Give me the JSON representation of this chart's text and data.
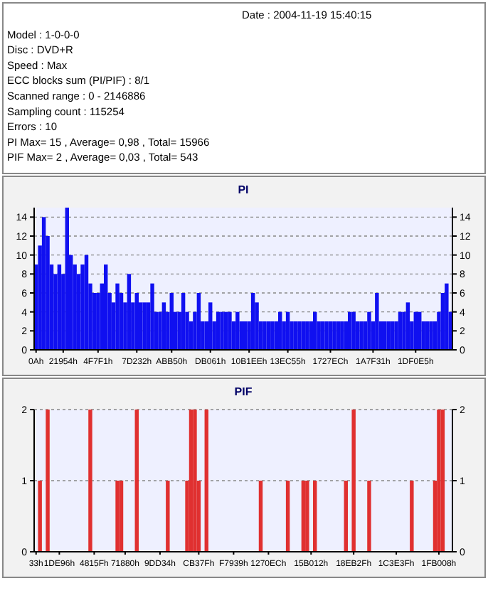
{
  "chart_data": [
    {
      "type": "other",
      "annotations": [
        "Date : 2004-11-19 15:40:15",
        "Model : 1-0-0-0",
        "Disc : DVD+R",
        "Speed : Max",
        "ECC blocks sum (PI/PIF) : 8/1",
        "Scanned range : 0 - 2146886",
        "Sampling count : 115254",
        "Errors : 10",
        "PI Max= 15 , Average= 0,98 , Total= 15966",
        "PIF Max= 2 , Average= 0,03 , Total= 543"
      ]
    },
    {
      "type": "bar",
      "title": "PI",
      "grid": "y",
      "categories": [
        "0Ah",
        null,
        null,
        null,
        null,
        null,
        null,
        "21954h",
        null,
        null,
        null,
        null,
        null,
        null,
        null,
        null,
        "4F7F1h",
        null,
        null,
        null,
        null,
        null,
        null,
        null,
        null,
        null,
        "7D232h",
        null,
        null,
        null,
        null,
        null,
        null,
        null,
        null,
        "ABB50h",
        null,
        null,
        null,
        null,
        null,
        null,
        null,
        null,
        null,
        "DB061h",
        null,
        null,
        null,
        null,
        null,
        null,
        null,
        null,
        null,
        "10B1EEh",
        null,
        null,
        null,
        null,
        null,
        null,
        null,
        null,
        null,
        "13EC55h",
        null,
        null,
        null,
        null,
        null,
        null,
        null,
        null,
        null,
        null,
        "1727ECh",
        null,
        null,
        null,
        null,
        null,
        null,
        null,
        null,
        null,
        null,
        "1A7F31h",
        null,
        null,
        null,
        null,
        null,
        null,
        null,
        null,
        null,
        null,
        "1DF0E5h",
        null,
        null,
        null,
        null,
        null,
        null,
        null,
        null,
        null
      ],
      "values": [
        9,
        11,
        14,
        12,
        9,
        8,
        9,
        8,
        15,
        10,
        9,
        8,
        9,
        10,
        7,
        6,
        6,
        7,
        9,
        6,
        5,
        7,
        6,
        5,
        8,
        5,
        6,
        5,
        5,
        5,
        7,
        4,
        4,
        5,
        4,
        6,
        4,
        4,
        6,
        4,
        3,
        4,
        6,
        3,
        3,
        5,
        3,
        4,
        4,
        4,
        4,
        3,
        4,
        3,
        3,
        3,
        6,
        5,
        3,
        3,
        3,
        3,
        3,
        4,
        3,
        4,
        3,
        3,
        3,
        3,
        3,
        3,
        4,
        3,
        3,
        3,
        3,
        3,
        3,
        3,
        3,
        4,
        4,
        3,
        3,
        3,
        4,
        3,
        6,
        3,
        3,
        3,
        3,
        3,
        4,
        4,
        5,
        3,
        4,
        4,
        3,
        3,
        3,
        3,
        4,
        6,
        7,
        4
      ],
      "color": "#1010f0",
      "ylim": [
        0,
        15
      ],
      "yticks": [
        0,
        2,
        4,
        6,
        8,
        10,
        12,
        14
      ],
      "y2lim": [
        0,
        15
      ],
      "y2ticks": [
        0,
        2,
        4,
        6,
        8,
        10,
        12,
        14
      ]
    },
    {
      "type": "bar",
      "title": "PIF",
      "grid": "y",
      "categories": [
        "33h",
        null,
        null,
        null,
        null,
        null,
        "1DE96h",
        null,
        null,
        null,
        null,
        null,
        null,
        null,
        null,
        "4815Fh",
        null,
        null,
        null,
        null,
        null,
        null,
        null,
        "71880h",
        null,
        null,
        null,
        null,
        null,
        null,
        null,
        null,
        "9DD34h",
        null,
        null,
        null,
        null,
        null,
        null,
        null,
        null,
        null,
        "CB37Fh",
        null,
        null,
        null,
        null,
        null,
        null,
        null,
        null,
        "F7939h",
        null,
        null,
        null,
        null,
        null,
        null,
        null,
        null,
        "1270ECh",
        null,
        null,
        null,
        null,
        null,
        null,
        null,
        null,
        null,
        null,
        "15B012h",
        null,
        null,
        null,
        null,
        null,
        null,
        null,
        null,
        null,
        null,
        "18EB2Fh",
        null,
        null,
        null,
        null,
        null,
        null,
        null,
        null,
        null,
        null,
        "1C3E3Fh",
        null,
        null,
        null,
        null,
        null,
        null,
        null,
        null,
        null,
        null,
        "1FB008h",
        null,
        null,
        null
      ],
      "values": [
        0,
        1,
        0,
        2,
        0,
        0,
        0,
        0,
        0,
        0,
        0,
        0,
        0,
        0,
        2,
        0,
        0,
        0,
        0,
        0,
        0,
        1,
        1,
        0,
        0,
        0,
        2,
        0,
        0,
        0,
        0,
        0,
        0,
        0,
        1,
        0,
        0,
        0,
        0,
        1,
        2,
        2,
        1,
        0,
        2,
        0,
        0,
        0,
        0,
        0,
        0,
        0,
        0,
        0,
        0,
        0,
        0,
        0,
        1,
        0,
        0,
        0,
        0,
        0,
        0,
        1,
        0,
        0,
        0,
        1,
        1,
        0,
        1,
        0,
        0,
        0,
        0,
        0,
        0,
        0,
        1,
        0,
        2,
        0,
        0,
        0,
        1,
        0,
        0,
        0,
        0,
        0,
        0,
        0,
        0,
        0,
        0,
        1,
        0,
        0,
        0,
        0,
        0,
        1,
        2,
        2,
        0,
        0
      ],
      "color": "#e03030",
      "ylim": [
        0,
        2
      ],
      "yticks": [
        0,
        1,
        2
      ],
      "y2lim": [
        0,
        2
      ],
      "y2ticks": [
        0,
        1,
        2
      ]
    }
  ]
}
